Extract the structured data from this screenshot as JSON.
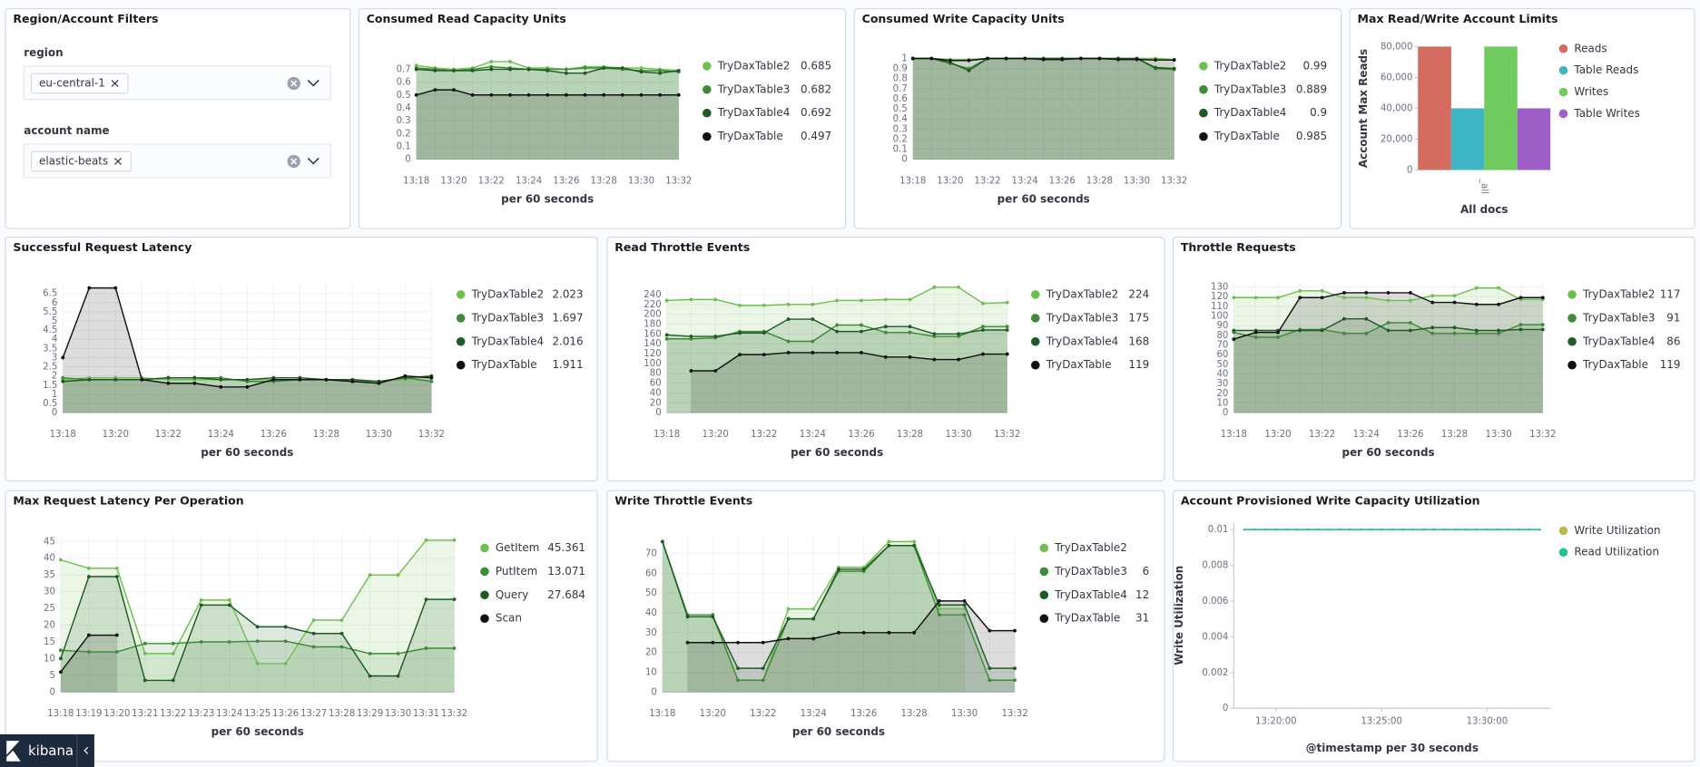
{
  "app": {
    "name": "kibana"
  },
  "filters": {
    "title": "Region/Account Filters",
    "controls": [
      {
        "label": "region",
        "selected": "eu-central-1"
      },
      {
        "label": "account name",
        "selected": "elastic-beats"
      }
    ]
  },
  "chart_data": [
    {
      "type": "area",
      "title": "Consumed Read Capacity Units",
      "x_label": "per 60 seconds",
      "grid": true,
      "categories": [
        "13:18",
        null,
        "13:20",
        null,
        "13:22",
        null,
        "13:24",
        null,
        "13:26",
        null,
        "13:28",
        null,
        "13:30",
        null,
        "13:32"
      ],
      "ylim": [
        0,
        0.78
      ],
      "yticks": [
        0,
        0.1,
        0.2,
        0.3,
        0.4,
        0.5,
        0.6,
        0.7
      ],
      "series": [
        {
          "name": "TryDaxTable2",
          "color": "#6fbf4f",
          "legend_value": 0.685,
          "values": [
            0.73,
            0.71,
            0.7,
            0.71,
            0.76,
            0.76,
            0.71,
            0.71,
            0.7,
            0.72,
            0.72,
            0.71,
            0.71,
            0.7,
            0.69
          ]
        },
        {
          "name": "TryDaxTable3",
          "color": "#3d8b37",
          "legend_value": 0.682,
          "values": [
            0.71,
            0.7,
            0.69,
            0.7,
            0.72,
            0.71,
            0.7,
            0.7,
            0.7,
            0.71,
            0.71,
            0.7,
            0.69,
            0.69,
            0.68
          ]
        },
        {
          "name": "TryDaxTable4",
          "color": "#1e5a24",
          "legend_value": 0.692,
          "values": [
            0.7,
            0.69,
            0.69,
            0.69,
            0.7,
            0.7,
            0.7,
            0.69,
            0.67,
            0.67,
            0.71,
            0.71,
            0.68,
            0.67,
            0.69
          ]
        },
        {
          "name": "TryDaxTable",
          "color": "#111111",
          "legend_value": 0.497,
          "values": [
            0.5,
            0.54,
            0.54,
            0.5,
            0.5,
            0.5,
            0.5,
            0.5,
            0.5,
            0.5,
            0.5,
            0.5,
            0.5,
            0.5,
            0.5
          ]
        }
      ]
    },
    {
      "type": "area",
      "title": "Consumed Write Capacity Units",
      "x_label": "per 60 seconds",
      "grid": true,
      "categories": [
        "13:18",
        null,
        "13:20",
        null,
        "13:22",
        null,
        "13:24",
        null,
        "13:26",
        null,
        "13:28",
        null,
        "13:30",
        null,
        "13:32"
      ],
      "ylim": [
        0,
        1
      ],
      "yticks": [
        0,
        0.1,
        0.2,
        0.3,
        0.4,
        0.5,
        0.6,
        0.7,
        0.8,
        0.9,
        1
      ],
      "series": [
        {
          "name": "TryDaxTable2",
          "color": "#6fbf4f",
          "legend_value": 0.99,
          "values": [
            1,
            1,
            0.99,
            0.99,
            1,
            1,
            1,
            1,
            1,
            1,
            1,
            0.99,
            1,
            1,
            0.99
          ]
        },
        {
          "name": "TryDaxTable3",
          "color": "#3d8b37",
          "legend_value": 0.889,
          "values": [
            1,
            1,
            0.95,
            0.9,
            1,
            1,
            1,
            1,
            1,
            1,
            1,
            1,
            1,
            0.9,
            0.89
          ]
        },
        {
          "name": "TryDaxTable4",
          "color": "#1e5a24",
          "legend_value": 0.9,
          "values": [
            1,
            1,
            0.96,
            0.88,
            1,
            1,
            1,
            1,
            1,
            1,
            1,
            1,
            1,
            0.91,
            0.9
          ]
        },
        {
          "name": "TryDaxTable",
          "color": "#111111",
          "legend_value": 0.985,
          "values": [
            1,
            1,
            0.98,
            0.98,
            1,
            1,
            1,
            0.99,
            0.99,
            1,
            1,
            0.99,
            0.99,
            0.985,
            0.985
          ]
        }
      ]
    },
    {
      "type": "bar",
      "title": "Max Read/Write Account Limits",
      "x_label": "All docs",
      "y_label": "Account Max Reads",
      "categories": [
        "_all"
      ],
      "ylim": [
        0,
        80000
      ],
      "yticks": [
        0,
        {
          "value": 20000,
          "label": "20,000"
        },
        {
          "value": 40000,
          "label": "40,000"
        },
        {
          "value": 60000,
          "label": "60,000"
        },
        {
          "value": 80000,
          "label": "80,000"
        }
      ],
      "series": [
        {
          "name": "Reads",
          "color": "#d36b5f",
          "values": [
            80000
          ]
        },
        {
          "name": "Table Reads",
          "color": "#3fb6c8",
          "values": [
            40000
          ]
        },
        {
          "name": "Writes",
          "color": "#6fcb5e",
          "values": [
            80000
          ]
        },
        {
          "name": "Table Writes",
          "color": "#9d5fc7",
          "values": [
            40000
          ]
        }
      ]
    },
    {
      "type": "area",
      "title": "Successful Request Latency",
      "x_label": "per 60 seconds",
      "grid": true,
      "categories": [
        "13:18",
        null,
        "13:20",
        null,
        "13:22",
        null,
        "13:24",
        null,
        "13:26",
        null,
        "13:28",
        null,
        "13:30",
        null,
        "13:32"
      ],
      "ylim": [
        0,
        7
      ],
      "yticks": [
        0,
        0.5,
        1,
        1.5,
        2,
        2.5,
        3,
        3.5,
        4,
        4.5,
        5,
        5.5,
        6,
        6.5
      ],
      "series": [
        {
          "name": "TryDaxTable2",
          "color": "#6fbf4f",
          "legend_value": 2.023,
          "values": [
            1.8,
            1.9,
            1.9,
            1.9,
            1.8,
            1.8,
            1.8,
            1.8,
            1.8,
            1.8,
            1.8,
            1.7,
            1.7,
            1.8,
            2
          ]
        },
        {
          "name": "TryDaxTable3",
          "color": "#3d8b37",
          "legend_value": 1.697,
          "values": [
            1.9,
            1.8,
            1.8,
            1.8,
            1.9,
            1.9,
            1.9,
            1.7,
            1.7,
            1.8,
            1.8,
            1.8,
            1.7,
            1.9,
            1.7
          ]
        },
        {
          "name": "TryDaxTable4",
          "color": "#1e5a24",
          "legend_value": 2.016,
          "values": [
            1.7,
            1.8,
            1.8,
            1.8,
            1.9,
            1.9,
            1.8,
            1.8,
            1.9,
            1.9,
            1.8,
            1.8,
            1.7,
            1.9,
            2
          ]
        },
        {
          "name": "TryDaxTable",
          "color": "#111111",
          "legend_value": 1.911,
          "values": [
            3,
            6.8,
            6.8,
            1.8,
            1.6,
            1.6,
            1.4,
            1.4,
            1.8,
            1.8,
            1.8,
            1.7,
            1.6,
            2,
            1.9
          ]
        }
      ]
    },
    {
      "type": "area",
      "title": "Read Throttle Events",
      "x_label": "per 60 seconds",
      "grid": true,
      "categories": [
        "13:18",
        null,
        "13:20",
        null,
        "13:22",
        null,
        "13:24",
        null,
        "13:26",
        null,
        "13:28",
        null,
        "13:30",
        null,
        "13:32"
      ],
      "ylim": [
        0,
        255
      ],
      "yticks": [
        0,
        20,
        40,
        60,
        80,
        100,
        120,
        140,
        160,
        180,
        200,
        220,
        240
      ],
      "series": [
        {
          "name": "TryDaxTable2",
          "color": "#6fbf4f",
          "legend_value": 224,
          "values": [
            228,
            230,
            230,
            218,
            218,
            220,
            220,
            228,
            228,
            230,
            230,
            255,
            255,
            222,
            224
          ]
        },
        {
          "name": "TryDaxTable3",
          "color": "#3d8b37",
          "legend_value": 175,
          "values": [
            150,
            150,
            152,
            165,
            165,
            145,
            145,
            178,
            178,
            163,
            163,
            155,
            155,
            175,
            175
          ]
        },
        {
          "name": "TryDaxTable4",
          "color": "#1e5a24",
          "legend_value": 168,
          "values": [
            158,
            155,
            155,
            162,
            162,
            190,
            190,
            165,
            165,
            175,
            175,
            160,
            160,
            168,
            168
          ]
        },
        {
          "name": "TryDaxTable",
          "color": "#111111",
          "legend_value": 119,
          "values": [
            null,
            85,
            85,
            118,
            118,
            122,
            122,
            122,
            122,
            113,
            113,
            108,
            108,
            119,
            119
          ]
        }
      ]
    },
    {
      "type": "area",
      "title": "Throttle Requests",
      "x_label": "per 60 seconds",
      "grid": true,
      "categories": [
        "13:18",
        null,
        "13:20",
        null,
        "13:22",
        null,
        "13:24",
        null,
        "13:26",
        null,
        "13:28",
        null,
        "13:30",
        null,
        "13:32"
      ],
      "ylim": [
        0,
        133
      ],
      "yticks": [
        0,
        10,
        20,
        30,
        40,
        50,
        60,
        70,
        80,
        90,
        100,
        110,
        120,
        130
      ],
      "series": [
        {
          "name": "TryDaxTable2",
          "color": "#6fbf4f",
          "legend_value": 117,
          "values": [
            119,
            119,
            119,
            126,
            126,
            119,
            119,
            116,
            116,
            121,
            121,
            129,
            129,
            117,
            117
          ]
        },
        {
          "name": "TryDaxTable3",
          "color": "#3d8b37",
          "legend_value": 91,
          "values": [
            83,
            78,
            78,
            86,
            86,
            82,
            82,
            93,
            93,
            82,
            82,
            82,
            82,
            91,
            91
          ]
        },
        {
          "name": "TryDaxTable4",
          "color": "#1e5a24",
          "legend_value": 86,
          "values": [
            85,
            85,
            85,
            85,
            85,
            97,
            97,
            85,
            85,
            88,
            88,
            85,
            85,
            86,
            86
          ]
        },
        {
          "name": "TryDaxTable",
          "color": "#111111",
          "legend_value": 119,
          "values": [
            76,
            83,
            83,
            119,
            119,
            124,
            124,
            124,
            124,
            114,
            114,
            112,
            112,
            119,
            119
          ]
        }
      ]
    },
    {
      "type": "area",
      "title": "Max Request Latency Per Operation",
      "x_label": "per 60 seconds",
      "grid": true,
      "categories": [
        "13:18",
        "13:19",
        "13:20",
        "13:21",
        "13:22",
        "13:23",
        "13:24",
        "13:25",
        "13:26",
        "13:27",
        "13:28",
        "13:29",
        "13:30",
        "13:31",
        "13:32"
      ],
      "ylim": [
        0,
        47
      ],
      "yticks": [
        0,
        5,
        10,
        15,
        20,
        25,
        30,
        35,
        40,
        45
      ],
      "series": [
        {
          "name": "GetItem",
          "color": "#6fbf4f",
          "legend_value": 45.361,
          "values": [
            39.5,
            37,
            37,
            11.5,
            11.5,
            27.5,
            27.5,
            8.5,
            8.5,
            21.5,
            21.5,
            35,
            35,
            45.4,
            45.4
          ]
        },
        {
          "name": "PutItem",
          "color": "#3d8b37",
          "legend_value": 13.071,
          "values": [
            12.5,
            12,
            12,
            14.5,
            14.5,
            15,
            15,
            15.2,
            15.2,
            13.5,
            13.5,
            11.5,
            11.5,
            13.1,
            13.1
          ]
        },
        {
          "name": "Query",
          "color": "#1e5a24",
          "legend_value": 27.684,
          "values": [
            10,
            34.5,
            34.5,
            3.5,
            3.5,
            26,
            26,
            19.5,
            19.5,
            17.5,
            17.5,
            4.8,
            4.8,
            27.7,
            27.7
          ]
        },
        {
          "name": "Scan",
          "color": "#111111",
          "values": [
            6,
            17,
            17,
            null,
            null,
            null,
            null,
            null,
            null,
            null,
            null,
            null,
            null,
            null,
            null
          ]
        }
      ]
    },
    {
      "type": "area",
      "title": "Write Throttle Events",
      "x_label": "per 60 seconds",
      "grid": true,
      "categories": [
        "13:18",
        null,
        "13:20",
        null,
        "13:22",
        null,
        "13:24",
        null,
        "13:26",
        null,
        "13:28",
        null,
        "13:30",
        null,
        "13:32"
      ],
      "ylim": [
        0,
        78
      ],
      "yticks": [
        0,
        10,
        20,
        30,
        40,
        50,
        60,
        70
      ],
      "series": [
        {
          "name": "TryDaxTable2",
          "color": "#6fbf4f",
          "values": [
            76,
            38,
            38,
            6,
            6,
            42,
            42,
            63,
            63,
            76,
            76,
            42,
            42,
            null,
            null
          ]
        },
        {
          "name": "TryDaxTable3",
          "color": "#3d8b37",
          "legend_value": 6,
          "values": [
            76,
            39,
            39,
            6,
            6,
            37,
            37,
            61,
            61,
            74,
            74,
            39,
            39,
            6,
            6
          ]
        },
        {
          "name": "TryDaxTable4",
          "color": "#1e5a24",
          "legend_value": 12,
          "values": [
            76,
            38,
            38,
            12,
            12,
            37,
            37,
            62,
            62,
            74,
            74,
            44,
            44,
            12,
            12
          ]
        },
        {
          "name": "TryDaxTable",
          "color": "#111111",
          "legend_value": 31,
          "values": [
            null,
            25,
            25,
            25,
            25,
            27,
            27,
            30,
            30,
            30,
            30,
            46,
            46,
            31,
            31
          ]
        }
      ]
    },
    {
      "type": "line",
      "title": "Account Provisioned Write Capacity Utilization",
      "x_label": "@timestamp per 30 seconds",
      "y_label": "Write Utilization",
      "x": [
        "13:18:30",
        "13:19:00",
        "13:19:30",
        "13:20:00",
        "13:20:30",
        "13:21:00",
        "13:21:30",
        "13:22:00",
        "13:22:30",
        "13:23:00",
        "13:23:30",
        "13:24:00",
        "13:24:30",
        "13:25:00",
        "13:25:30",
        "13:26:00",
        "13:26:30",
        "13:27:00",
        "13:27:30",
        "13:28:00",
        "13:28:30",
        "13:29:00",
        "13:29:30",
        "13:30:00",
        "13:30:30",
        "13:31:00",
        "13:31:30",
        "13:32:00",
        "13:32:30"
      ],
      "xlim": [
        "13:18:00",
        "13:33:00"
      ],
      "xticks": [
        "13:20:00",
        "13:25:00",
        "13:30:00"
      ],
      "ylim": [
        0,
        0.0104
      ],
      "yticks": [
        0,
        0.002,
        0.004,
        0.006,
        0.008,
        0.01
      ],
      "series": [
        {
          "name": "Write Utilization",
          "color": "#b9b94a",
          "values": [
            0.01,
            0.01,
            0.01,
            0.01,
            0.01,
            0.01,
            0.01,
            0.01,
            0.01,
            0.01,
            0.01,
            0.01,
            0.01,
            0.01,
            0.01,
            0.01,
            0.01,
            0.01,
            0.01,
            0.01,
            0.01,
            0.01,
            0.01,
            0.01,
            0.01,
            0.01,
            0.01,
            0.01,
            0.01
          ]
        },
        {
          "name": "Read Utilization",
          "color": "#20c09a",
          "values": [
            0.01,
            0.01,
            0.01,
            0.01,
            0.01,
            0.01,
            0.01,
            0.01,
            0.01,
            0.01,
            0.01,
            0.01,
            0.01,
            0.01,
            0.01,
            0.01,
            0.01,
            0.01,
            0.01,
            0.01,
            0.01,
            0.01,
            0.01,
            0.01,
            0.01,
            0.01,
            0.01,
            0.01,
            0.01
          ]
        }
      ]
    }
  ]
}
